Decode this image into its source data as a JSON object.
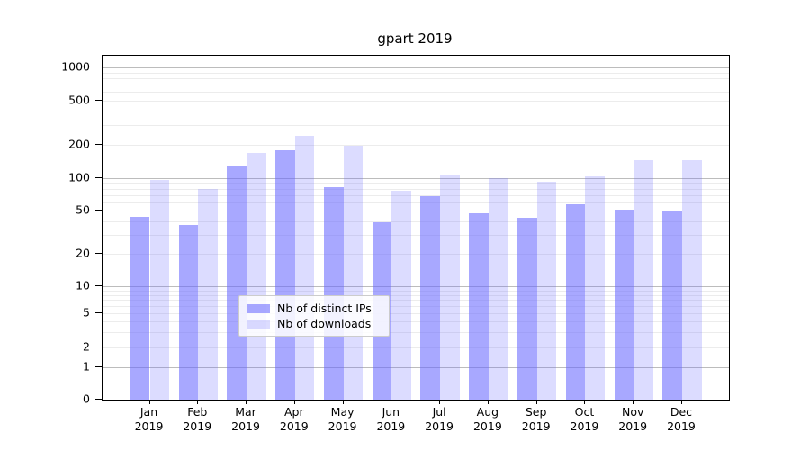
{
  "chart_data": {
    "type": "bar",
    "title": "gpart 2019",
    "categories": [
      "Jan 2019",
      "Feb 2019",
      "Mar 2019",
      "Apr 2019",
      "May 2019",
      "Jun 2019",
      "Jul 2019",
      "Aug 2019",
      "Sep 2019",
      "Oct 2019",
      "Nov 2019",
      "Dec 2019"
    ],
    "series": [
      {
        "name": "Nb of distinct IPs",
        "color": "rgba(102,102,255,0.57)",
        "values": [
          44,
          37,
          127,
          180,
          82,
          39,
          68,
          47,
          43,
          57,
          51,
          50
        ]
      },
      {
        "name": "Nb of downloads",
        "color": "rgba(102,102,255,0.23)",
        "values": [
          96,
          79,
          170,
          240,
          197,
          77,
          106,
          100,
          93,
          103,
          145,
          145
        ]
      }
    ],
    "xlabel": "",
    "ylabel": "",
    "yscale": "log with zero baseline",
    "yticks": [
      0,
      1,
      2,
      5,
      10,
      20,
      50,
      100,
      200,
      500,
      1000
    ],
    "ylim": [
      0,
      1275
    ],
    "grid": "on (minor log gridlines)",
    "legend_position": "lower center"
  },
  "colors": {
    "bar_distinct_ips": "rgba(102,102,255,0.57)",
    "bar_downloads": "rgba(102,102,255,0.23)",
    "grid_major": "#bcbcbc",
    "grid_minor": "#ececec",
    "axis_spine": "#000000",
    "legend_border": "#cccccc"
  }
}
